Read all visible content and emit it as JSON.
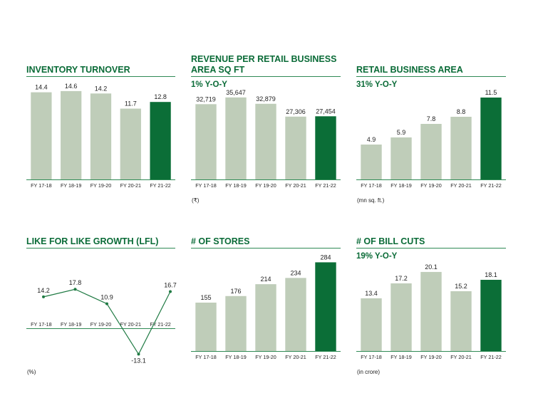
{
  "colors": {
    "accent": "#0a6b37",
    "bar": "#bfcdb9",
    "highlight": "#0b6e37",
    "line": "#1f7a43"
  },
  "chart_data": [
    {
      "id": "inventory",
      "type": "bar",
      "title": "INVENTORY TURNOVER",
      "subtitle": "",
      "unit": "",
      "categories": [
        "FY 17-18",
        "FY 18-19",
        "FY 19-20",
        "FY 20-21",
        "FY 21-22"
      ],
      "values": [
        14.4,
        14.6,
        14.2,
        11.7,
        12.8
      ],
      "labels": [
        "14.4",
        "14.6",
        "14.2",
        "11.7",
        "12.8"
      ],
      "ylim": [
        0,
        16
      ],
      "highlight_index": 4
    },
    {
      "id": "revenue",
      "type": "bar",
      "title": "REVENUE PER RETAIL BUSINESS\nAREA SQ FT",
      "subtitle": "1% Y-O-Y",
      "unit": "(₹)",
      "categories": [
        "FY 17-18",
        "FY 18-19",
        "FY 19-20",
        "FY 20-21",
        "FY 21-22"
      ],
      "values": [
        32719,
        35647,
        32879,
        27306,
        27454
      ],
      "labels": [
        "32,719",
        "35,647",
        "32,879",
        "27,306",
        "27,454"
      ],
      "ylim": [
        0,
        39000
      ],
      "highlight_index": 4
    },
    {
      "id": "area",
      "type": "bar",
      "title": "RETAIL BUSINESS AREA",
      "subtitle": "31% Y-O-Y",
      "unit": "(mn sq. ft.)",
      "categories": [
        "FY 17-18",
        "FY 18-19",
        "FY 19-20",
        "FY 20-21",
        "FY 21-22"
      ],
      "values": [
        4.9,
        5.9,
        7.8,
        8.8,
        11.5
      ],
      "labels": [
        "4.9",
        "5.9",
        "7.8",
        "8.8",
        "11.5"
      ],
      "ylim": [
        0,
        12.6
      ],
      "highlight_index": 4
    },
    {
      "id": "lfl",
      "type": "line",
      "title": "LIKE FOR LIKE GROWTH (LFL)",
      "subtitle": "",
      "unit": "(%)",
      "categories": [
        "FY 17-18",
        "FY 18-19",
        "FY 19-20",
        "FY 20-21",
        "FY 21-22"
      ],
      "values": [
        14.2,
        17.8,
        10.9,
        -13.1,
        16.7
      ],
      "labels": [
        "14.2",
        "17.8",
        "10.9",
        "-13.1",
        "16.7"
      ],
      "ylim": [
        -15,
        25
      ]
    },
    {
      "id": "stores",
      "type": "bar",
      "title": "# OF STORES",
      "subtitle": "",
      "unit": "",
      "categories": [
        "FY 17-18",
        "FY 18-19",
        "FY 19-20",
        "FY 20-21",
        "FY 21-22"
      ],
      "values": [
        155,
        176,
        214,
        234,
        284
      ],
      "labels": [
        "155",
        "176",
        "214",
        "234",
        "284"
      ],
      "ylim": [
        0,
        310
      ],
      "highlight_index": 4
    },
    {
      "id": "billcuts",
      "type": "bar",
      "title": "# OF BILL CUTS",
      "subtitle": "19% Y-O-Y",
      "unit": "(in crore)",
      "categories": [
        "FY 17-18",
        "FY 18-19",
        "FY 19-20",
        "FY 20-21",
        "FY 21-22"
      ],
      "values": [
        13.4,
        17.2,
        20.1,
        15.2,
        18.1
      ],
      "labels": [
        "13.4",
        "17.2",
        "20.1",
        "15.2",
        "18.1"
      ],
      "ylim": [
        0,
        22.8
      ],
      "highlight_index": 4
    }
  ]
}
